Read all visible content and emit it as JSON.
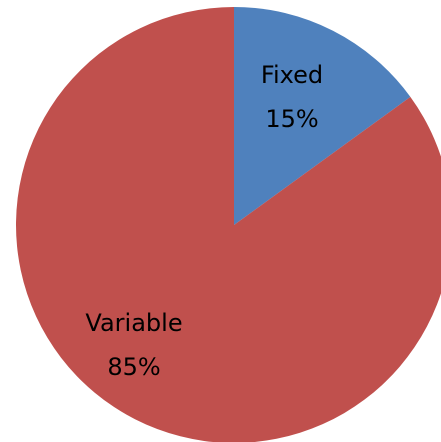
{
  "chart_data": {
    "type": "pie",
    "start_angle_deg": 0,
    "direction": "clockwise",
    "slices": [
      {
        "label": "Fixed",
        "value": 15,
        "value_label": "15%",
        "color": "#4F81BD"
      },
      {
        "label": "Variable",
        "value": 85,
        "value_label": "85%",
        "color": "#C0504D"
      }
    ]
  }
}
